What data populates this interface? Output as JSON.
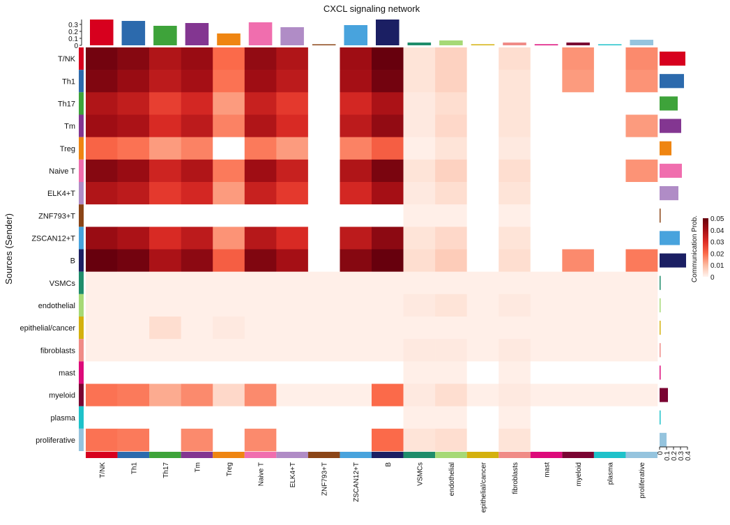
{
  "chart_data": {
    "type": "heatmap",
    "title": "CXCL signaling network",
    "ylabel": "Sources (Sender)",
    "xlabel": "",
    "legend_title": "Communication Prob.",
    "legend_ticks": [
      "0",
      "0.01",
      "0.02",
      "0.03",
      "0.04",
      "0.05"
    ],
    "legend_placement": "right",
    "value_range": [
      0,
      0.05
    ],
    "top_bar_ticks": [
      "0",
      "0.1",
      "0.2",
      "0.3"
    ],
    "right_bar_ticks": [
      "0",
      "0.1",
      "0.2",
      "0.3",
      "0.4"
    ],
    "rows": [
      "T/NK",
      "Th1",
      "Th17",
      "Tm",
      "Treg",
      "Naive T",
      "ELK4+T",
      "ZNF793+T",
      "ZSCAN12+T",
      "B",
      "VSMCs",
      "endothelial",
      "epithelial/cancer",
      "fibroblasts",
      "mast",
      "myeloid",
      "plasma",
      "proliferative"
    ],
    "columns": [
      "T/NK",
      "Th1",
      "Th17",
      "Tm",
      "Treg",
      "Naive T",
      "ELK4+T",
      "ZNF793+T",
      "ZSCAN12+T",
      "B",
      "VSMCs",
      "endothelial",
      "epithelial/cancer",
      "fibroblasts",
      "mast",
      "myeloid",
      "plasma",
      "proliferative"
    ],
    "group_colors": [
      "#d7001e",
      "#2c6aad",
      "#3ea33a",
      "#833691",
      "#ef8511",
      "#f06eae",
      "#b08cc6",
      "#8b4517",
      "#48a3dd",
      "#1b1f63",
      "#1f8d6b",
      "#a6d976",
      "#d4b10e",
      "#f08b87",
      "#dd0a7a",
      "#7a0432",
      "#1ec2ca",
      "#95c4de"
    ],
    "column_totals": [
      0.37,
      0.35,
      0.28,
      0.32,
      0.17,
      0.33,
      0.26,
      0.01,
      0.29,
      0.37,
      0.04,
      0.07,
      0.01,
      0.04,
      0.01,
      0.04,
      0.01,
      0.08
    ],
    "row_totals": [
      0.37,
      0.35,
      0.26,
      0.31,
      0.17,
      0.32,
      0.27,
      0.01,
      0.29,
      0.38,
      0.01,
      0.01,
      0.01,
      0.01,
      0.01,
      0.12,
      0.01,
      0.1
    ],
    "values": [
      [
        0.048,
        0.045,
        0.038,
        0.042,
        0.02,
        0.043,
        0.038,
        0,
        0.041,
        0.05,
        0.003,
        0.006,
        0,
        0.004,
        0,
        0.015,
        0,
        0.016
      ],
      [
        0.046,
        0.042,
        0.036,
        0.04,
        0.019,
        0.041,
        0.036,
        0,
        0.04,
        0.048,
        0.003,
        0.006,
        0,
        0.003,
        0,
        0.014,
        0,
        0.015
      ],
      [
        0.038,
        0.035,
        0.027,
        0.032,
        0.014,
        0.034,
        0.028,
        0,
        0.032,
        0.039,
        0.002,
        0.004,
        0,
        0.003,
        0,
        0,
        0,
        0
      ],
      [
        0.041,
        0.039,
        0.031,
        0.036,
        0.017,
        0.038,
        0.031,
        0,
        0.036,
        0.043,
        0.002,
        0.005,
        0,
        0.003,
        0,
        0,
        0,
        0.014
      ],
      [
        0.021,
        0.019,
        0.014,
        0.017,
        0,
        0.018,
        0.014,
        0,
        0.017,
        0.022,
        0.001,
        0.003,
        0,
        0.002,
        0,
        0,
        0,
        0
      ],
      [
        0.045,
        0.042,
        0.033,
        0.038,
        0.018,
        0.041,
        0.034,
        0,
        0.038,
        0.047,
        0.003,
        0.006,
        0,
        0.004,
        0,
        0,
        0,
        0.015
      ],
      [
        0.038,
        0.036,
        0.028,
        0.032,
        0.014,
        0.034,
        0.028,
        0,
        0.032,
        0.04,
        0.002,
        0.004,
        0,
        0.003,
        0,
        0,
        0,
        0
      ],
      [
        0,
        0,
        0,
        0,
        0,
        0,
        0,
        0,
        0,
        0,
        0.001,
        0.001,
        0,
        0.001,
        0,
        0,
        0,
        0
      ],
      [
        0.042,
        0.039,
        0.031,
        0.036,
        0.015,
        0.037,
        0.031,
        0,
        0.036,
        0.044,
        0.003,
        0.005,
        0,
        0.003,
        0,
        0,
        0,
        0
      ],
      [
        0.05,
        0.048,
        0.039,
        0.044,
        0.022,
        0.046,
        0.04,
        0,
        0.045,
        0.05,
        0.004,
        0.007,
        0,
        0.004,
        0,
        0.016,
        0,
        0.018
      ],
      [
        0.001,
        0.001,
        0.001,
        0.001,
        0.001,
        0.001,
        0.001,
        0.001,
        0.001,
        0.001,
        0.001,
        0.001,
        0.001,
        0.001,
        0.001,
        0.001,
        0.001,
        0.001
      ],
      [
        0.001,
        0.001,
        0.001,
        0.001,
        0.001,
        0.001,
        0.001,
        0.001,
        0.001,
        0.001,
        0.002,
        0.003,
        0.001,
        0.002,
        0.001,
        0.001,
        0.001,
        0.001
      ],
      [
        0.001,
        0.001,
        0.004,
        0.001,
        0.002,
        0.001,
        0.001,
        0.001,
        0.001,
        0.001,
        0.001,
        0.001,
        0.001,
        0.001,
        0.001,
        0.001,
        0.001,
        0.001
      ],
      [
        0.001,
        0.001,
        0.001,
        0.001,
        0.001,
        0.001,
        0.001,
        0.001,
        0.001,
        0.001,
        0.002,
        0.002,
        0.001,
        0.002,
        0.001,
        0.001,
        0.001,
        0.001
      ],
      [
        0,
        0,
        0,
        0,
        0,
        0,
        0,
        0,
        0,
        0,
        0.001,
        0.001,
        0,
        0.001,
        0,
        0,
        0,
        0
      ],
      [
        0.019,
        0.018,
        0.012,
        0.016,
        0.005,
        0.016,
        0.001,
        0.001,
        0.001,
        0.02,
        0.002,
        0.004,
        0.001,
        0.002,
        0.001,
        0.001,
        0.001,
        0.001
      ],
      [
        0,
        0,
        0,
        0,
        0,
        0,
        0,
        0,
        0,
        0,
        0.001,
        0.001,
        0,
        0.001,
        0,
        0,
        0,
        0
      ],
      [
        0.019,
        0.018,
        0,
        0.016,
        0,
        0.016,
        0,
        0,
        0,
        0.02,
        0.003,
        0.004,
        0,
        0.003,
        0,
        0,
        0,
        0
      ]
    ]
  }
}
